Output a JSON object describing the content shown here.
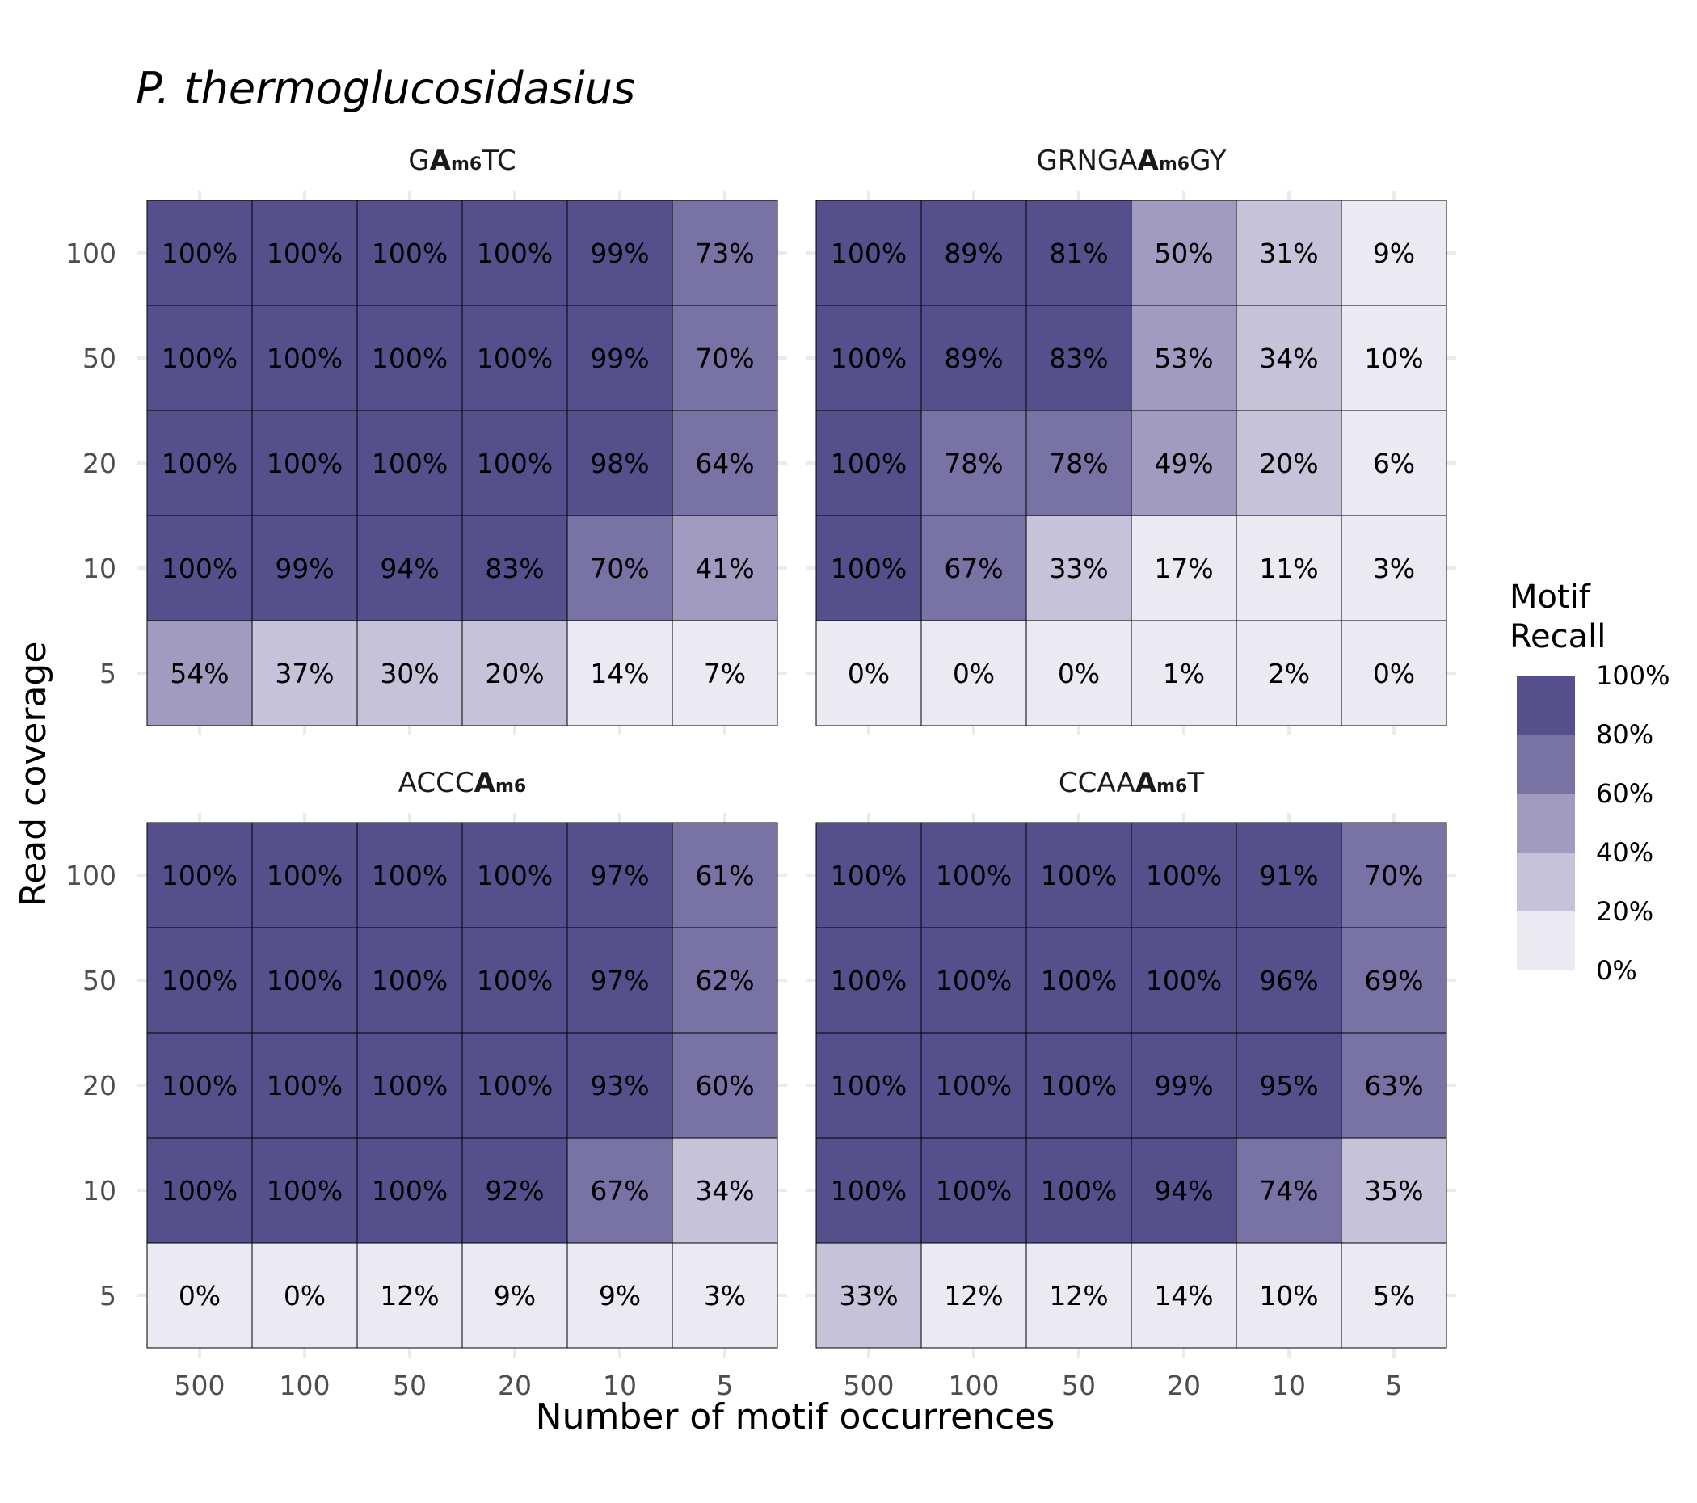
{
  "chart_data": {
    "type": "heatmap",
    "title": "P. thermoglucosidasius",
    "xlabel": "Number of motif occurrences",
    "ylabel": "Read coverage",
    "x_categories": [
      "500",
      "100",
      "50",
      "20",
      "10",
      "5"
    ],
    "y_categories": [
      "100",
      "50",
      "20",
      "10",
      "5"
    ],
    "legend": {
      "title_line1": "Motif",
      "title_line2": "Recall",
      "labels": [
        "100%",
        "80%",
        "60%",
        "40%",
        "20%",
        "0%"
      ],
      "colors": [
        "#55508b",
        "#7872a5",
        "#a09bbf",
        "#c5c2d9",
        "#ebe9f2"
      ]
    },
    "panels": [
      {
        "title_parts": [
          {
            "text": "G",
            "style": "normal"
          },
          {
            "text": "A",
            "style": "bold"
          },
          {
            "text": "m6",
            "style": "sub"
          },
          {
            "text": "TC",
            "style": "normal"
          }
        ],
        "values": [
          [
            100,
            100,
            100,
            100,
            99,
            73
          ],
          [
            100,
            100,
            100,
            100,
            99,
            70
          ],
          [
            100,
            100,
            100,
            100,
            98,
            64
          ],
          [
            100,
            99,
            94,
            83,
            70,
            41
          ],
          [
            54,
            37,
            30,
            20,
            14,
            7
          ]
        ]
      },
      {
        "title_parts": [
          {
            "text": "GRNGA",
            "style": "normal"
          },
          {
            "text": "A",
            "style": "bold"
          },
          {
            "text": "m6",
            "style": "sub"
          },
          {
            "text": "GY",
            "style": "normal"
          }
        ],
        "values": [
          [
            100,
            89,
            81,
            50,
            31,
            9
          ],
          [
            100,
            89,
            83,
            53,
            34,
            10
          ],
          [
            100,
            78,
            78,
            49,
            20,
            6
          ],
          [
            100,
            67,
            33,
            17,
            11,
            3
          ],
          [
            0,
            0,
            0,
            1,
            2,
            0
          ]
        ]
      },
      {
        "title_parts": [
          {
            "text": "ACCC",
            "style": "normal"
          },
          {
            "text": "A",
            "style": "bold"
          },
          {
            "text": "m6",
            "style": "sub"
          }
        ],
        "values": [
          [
            100,
            100,
            100,
            100,
            97,
            61
          ],
          [
            100,
            100,
            100,
            100,
            97,
            62
          ],
          [
            100,
            100,
            100,
            100,
            93,
            60
          ],
          [
            100,
            100,
            100,
            92,
            67,
            34
          ],
          [
            0,
            0,
            12,
            9,
            9,
            3
          ]
        ]
      },
      {
        "title_parts": [
          {
            "text": "CCAA",
            "style": "normal"
          },
          {
            "text": "A",
            "style": "bold"
          },
          {
            "text": "m6",
            "style": "sub"
          },
          {
            "text": "T",
            "style": "normal"
          }
        ],
        "values": [
          [
            100,
            100,
            100,
            100,
            91,
            70
          ],
          [
            100,
            100,
            100,
            100,
            96,
            69
          ],
          [
            100,
            100,
            100,
            99,
            95,
            63
          ],
          [
            100,
            100,
            100,
            94,
            74,
            35
          ],
          [
            33,
            12,
            12,
            14,
            10,
            5
          ]
        ]
      }
    ]
  }
}
